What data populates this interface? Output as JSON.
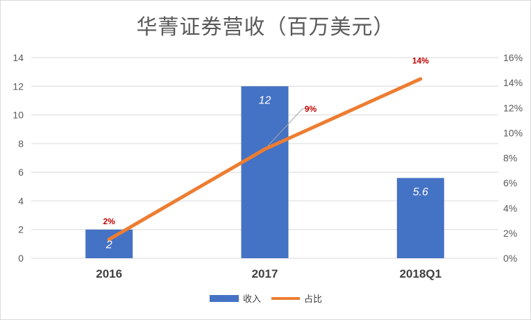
{
  "chart_data": {
    "type": "bar",
    "title": "华菁证券营收（百万美元）",
    "categories": [
      "2016",
      "2017",
      "2018Q1"
    ],
    "series": [
      {
        "name": "收入",
        "type": "bar",
        "axis": "left",
        "values": [
          2,
          12,
          5.6
        ],
        "labels": [
          "2",
          "12",
          "5.6"
        ],
        "color": "#4472C4"
      },
      {
        "name": "占比",
        "type": "line",
        "axis": "right",
        "values": [
          1.5,
          8.7,
          14.3
        ],
        "labels": [
          "2%",
          "9%",
          "14%"
        ],
        "color": "#ED7D31"
      }
    ],
    "y_left": {
      "ylim": [
        0,
        14
      ],
      "ticks": [
        "0",
        "2",
        "4",
        "6",
        "8",
        "10",
        "12",
        "14"
      ]
    },
    "y_right": {
      "ylim": [
        0,
        16
      ],
      "ticks": [
        "0%",
        "2%",
        "4%",
        "6%",
        "8%",
        "10%",
        "12%",
        "14%",
        "16%"
      ]
    },
    "grid": true,
    "legend": "bottom-center",
    "label_color": "#C00000"
  }
}
